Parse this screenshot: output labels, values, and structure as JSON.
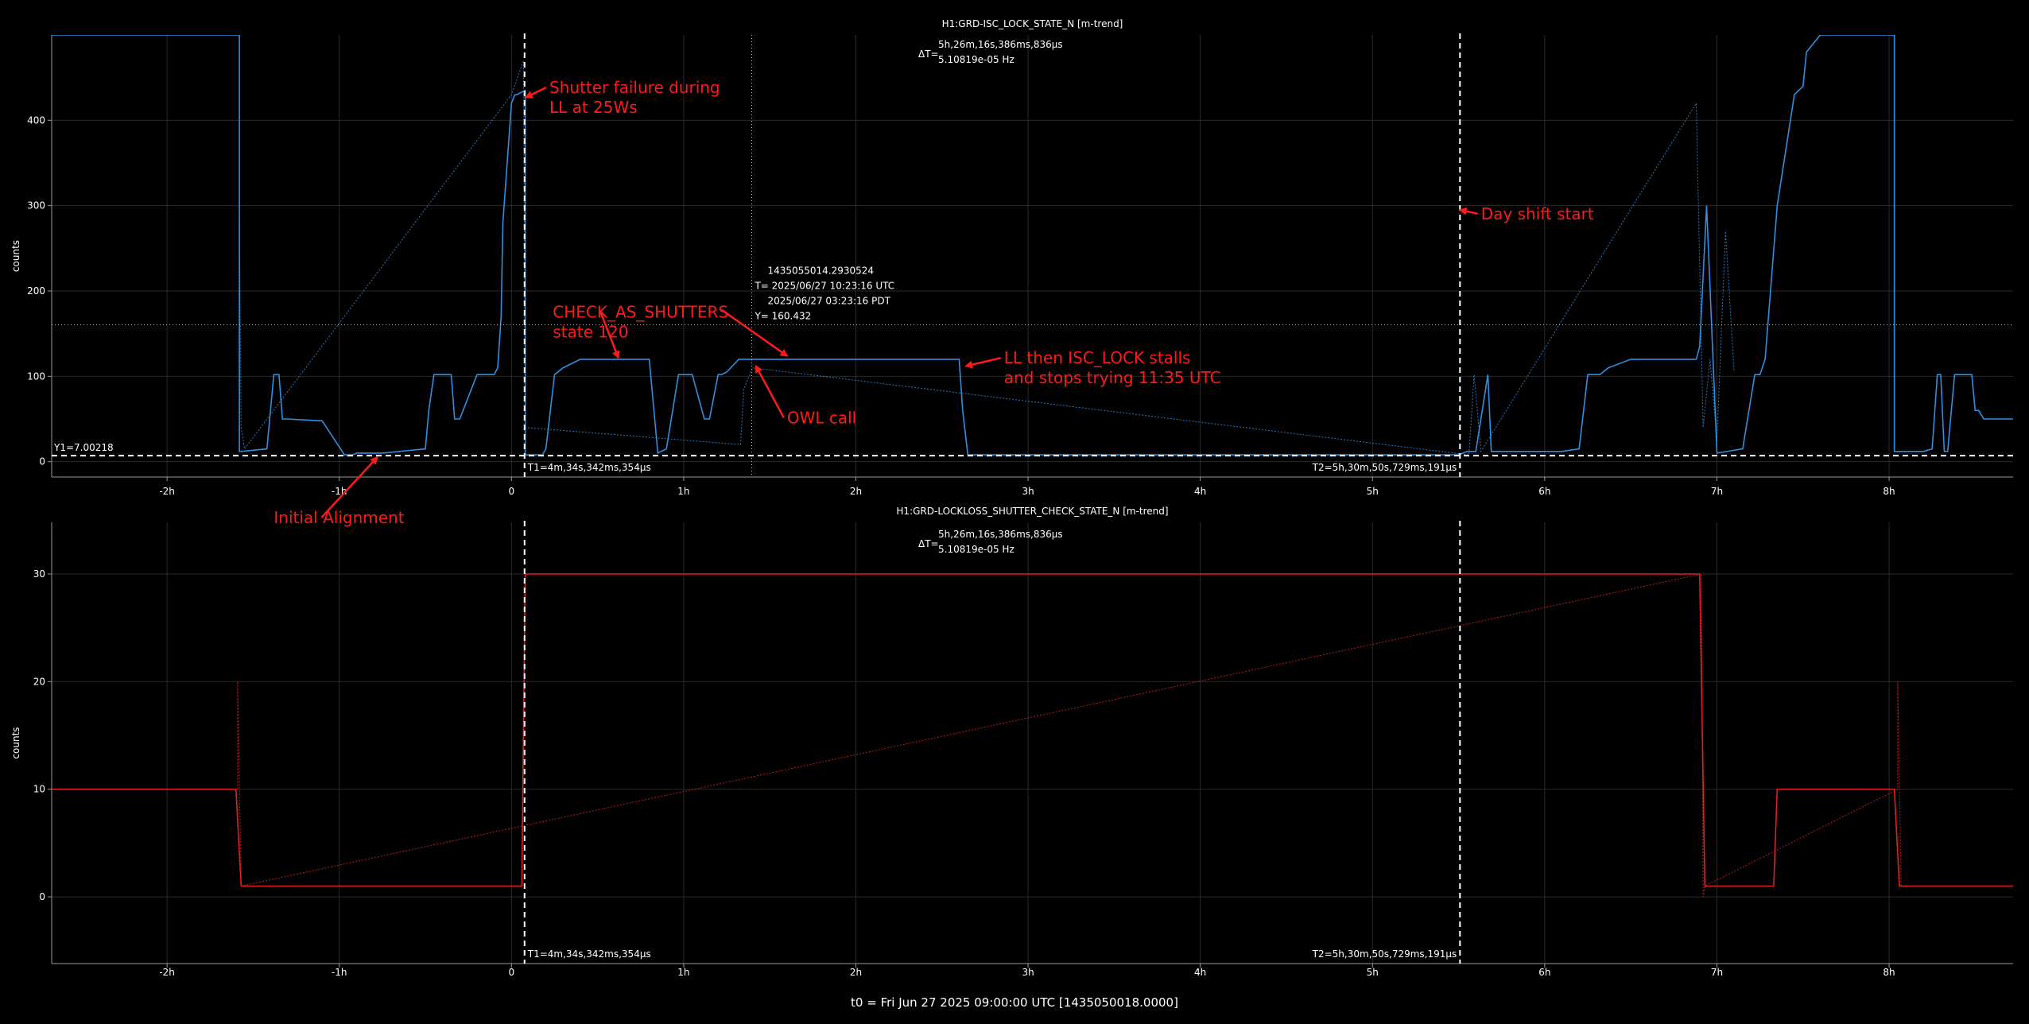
{
  "colors": {
    "background": "#000000",
    "axis": "#9a9a9a",
    "grid": "#2a2a2a",
    "text": "#ffffff",
    "trace_top": "#2f8fe0",
    "trace_bottom": "#e02020",
    "annotation": "#ff1a1a",
    "cursor": "#ffffff"
  },
  "footer": "t0 = Fri Jun 27 2025 09:00:00 UTC [1435050018.0000]",
  "chart_data": [
    {
      "type": "line",
      "title": "H1:GRD-ISC_LOCK_STATE_N [m-trend]",
      "ylabel": "counts",
      "xlim": [
        -2.67,
        8.72
      ],
      "ylim": [
        -18,
        500
      ],
      "xticks": [
        -2,
        -1,
        0,
        1,
        2,
        3,
        4,
        5,
        6,
        7,
        8
      ],
      "xtick_labels": [
        "-2h",
        "-1h",
        "0",
        "1h",
        "2h",
        "3h",
        "4h",
        "5h",
        "6h",
        "7h",
        "8h"
      ],
      "yticks": [
        0,
        100,
        200,
        300,
        400
      ],
      "ytick_labels": [
        "0",
        "100",
        "200",
        "300",
        "400"
      ],
      "grid": true,
      "series": [
        {
          "x": [
            -2.67,
            -1.58,
            -1.58,
            -1.57,
            -1.42,
            -1.38,
            -1.35,
            -1.33,
            -1.3,
            -1.12,
            -1.1,
            -0.97,
            -0.92,
            -0.9,
            -0.75,
            -0.5,
            -0.48,
            -0.45,
            -0.35,
            -0.33,
            -0.3,
            -0.2,
            -0.15,
            -0.1,
            -0.08,
            -0.06,
            -0.05,
            0.0,
            0.02,
            0.03,
            0.08,
            0.08,
            0.18,
            0.2,
            0.25,
            0.3,
            0.4,
            0.5,
            0.6,
            0.7,
            0.8,
            0.85,
            0.9,
            0.97,
            1.0,
            1.05,
            1.12,
            1.15,
            1.2,
            1.22,
            1.25,
            1.32,
            1.38,
            1.42,
            1.5,
            1.55,
            1.6,
            2.6,
            2.62,
            2.65,
            5.45,
            5.5,
            5.55,
            5.6,
            5.67,
            5.69,
            6.1,
            6.2,
            6.25,
            6.28,
            6.32,
            6.37,
            6.5,
            6.6,
            6.8,
            6.88,
            6.9,
            6.94,
            7.0,
            7.15,
            7.22,
            7.25,
            7.28,
            7.35,
            7.45,
            7.5,
            7.52,
            7.6,
            7.7,
            7.75,
            8.03,
            8.03,
            8.2,
            8.25,
            8.28,
            8.3,
            8.32,
            8.34,
            8.38,
            8.48,
            8.5,
            8.52,
            8.55,
            8.72
          ],
          "y": [
            500,
            500,
            12,
            12,
            15,
            102,
            102,
            50,
            50,
            48,
            48,
            8,
            8,
            10,
            10,
            15,
            60,
            102,
            102,
            50,
            50,
            102,
            102,
            102,
            110,
            170,
            280,
            420,
            430,
            430,
            435,
            8,
            8,
            15,
            102,
            110,
            120,
            120,
            120,
            120,
            120,
            10,
            15,
            102,
            102,
            102,
            50,
            50,
            102,
            102,
            105,
            120,
            120,
            120,
            120,
            120,
            120,
            120,
            60,
            8,
            8,
            8,
            12,
            12,
            102,
            12,
            12,
            15,
            102,
            102,
            102,
            110,
            120,
            120,
            120,
            120,
            135,
            300,
            10,
            15,
            102,
            102,
            120,
            300,
            430,
            440,
            480,
            500,
            500,
            500,
            500,
            12,
            12,
            15,
            102,
            102,
            12,
            12,
            102,
            102,
            60,
            60,
            50,
            50
          ],
          "style": "solid"
        },
        {
          "x": [
            -1.58,
            -1.57,
            -1.55,
            -0.0,
            0.07,
            0.08,
            1.33,
            1.35,
            1.4,
            5.56,
            5.59,
            5.63,
            6.88,
            6.92,
            6.96,
            7.0,
            7.05,
            7.1
          ],
          "y": [
            290,
            40,
            15,
            430,
            470,
            40,
            20,
            85,
            110,
            8,
            102,
            12,
            420,
            40,
            120,
            25,
            270,
            105
          ],
          "style": "dotted"
        }
      ],
      "cursors": {
        "t1": 0.076,
        "t2": 5.508,
        "y1": 7.00218,
        "t1_label": "T1=4m,34s,342ms,354µs",
        "t2_label": "T2=5h,30m,50s,729ms,191µs",
        "y1_label": "Y1=7.00218",
        "delta_label": "ΔT=",
        "delta_line1": "5h,26m,16s,386ms,836µs",
        "delta_line2": "5.10819e-05 Hz"
      },
      "crosshair": {
        "x": 1.395,
        "y": 160.432,
        "label_gps": "1435055014.2930524",
        "label_utc": "T= 2025/06/27 10:23:16 UTC",
        "label_pdt": "2025/06/27 03:23:16 PDT",
        "label_y": "Y= 160.432"
      },
      "annotations": [
        {
          "lines": [
            "Shutter failure during",
            "LL at 25Ws"
          ],
          "text_x": 0.22,
          "text_y": 432,
          "arrow_to_x": 0.085,
          "arrow_to_y": 427
        },
        {
          "lines": [
            "Day shift start"
          ],
          "text_x": 5.63,
          "text_y": 284,
          "arrow_to_x": 5.51,
          "arrow_to_y": 295
        },
        {
          "lines": [
            "CHECK_AS_SHUTTERS",
            "state 120"
          ],
          "text_x": 0.24,
          "text_y": 169,
          "arrow_to_x": 0.62,
          "arrow_to_y": 122
        },
        {
          "lines": [],
          "text_x": 1.22,
          "text_y": 178,
          "arrow_to_x": 1.6,
          "arrow_to_y": 124
        },
        {
          "lines": [
            "OWL call"
          ],
          "text_x": 1.6,
          "text_y": 45,
          "arrow_to_x": 1.42,
          "arrow_to_y": 112
        },
        {
          "lines": [
            "LL then ISC_LOCK stalls",
            "and stops trying 11:35 UTC"
          ],
          "text_x": 2.86,
          "text_y": 115,
          "arrow_to_x": 2.64,
          "arrow_to_y": 112
        },
        {
          "lines": [
            "Initial Alignment"
          ],
          "text_x": -1.38,
          "text_y": -72,
          "arrow_to_x": -0.78,
          "arrow_to_y": 5
        }
      ]
    },
    {
      "type": "line",
      "title": "H1:GRD-LOCKLOSS_SHUTTER_CHECK_STATE_N [m-trend]",
      "ylabel": "counts",
      "xlim": [
        -2.67,
        8.72
      ],
      "ylim": [
        -6.2,
        34.8
      ],
      "xticks": [
        -2,
        -1,
        0,
        1,
        2,
        3,
        4,
        5,
        6,
        7,
        8
      ],
      "xtick_labels": [
        "-2h",
        "-1h",
        "0",
        "1h",
        "2h",
        "3h",
        "4h",
        "5h",
        "6h",
        "7h",
        "8h"
      ],
      "yticks": [
        0,
        10,
        20,
        30
      ],
      "ytick_labels": [
        "0",
        "10",
        "20",
        "30"
      ],
      "grid": true,
      "series": [
        {
          "x": [
            -2.67,
            -1.6,
            -1.57,
            0.06,
            0.08,
            6.9,
            6.93,
            7.33,
            7.35,
            8.03,
            8.06,
            8.72
          ],
          "y": [
            10,
            10,
            1,
            1,
            30,
            30,
            1,
            1,
            10,
            10,
            1,
            1
          ],
          "style": "solid"
        },
        {
          "x": [
            -1.59,
            -1.59,
            -1.57,
            6.91,
            6.92,
            6.93,
            8.05,
            8.05,
            8.07
          ],
          "y": [
            10,
            20,
            1,
            30,
            0,
            1,
            10,
            20,
            1
          ],
          "style": "dotted"
        }
      ],
      "cursors": {
        "t1": 0.076,
        "t2": 5.508,
        "t1_label": "T1=4m,34s,342ms,354µs",
        "t2_label": "T2=5h,30m,50s,729ms,191µs",
        "delta_label": "ΔT=",
        "delta_line1": "5h,26m,16s,386ms,836µs",
        "delta_line2": "5.10819e-05 Hz"
      },
      "annotations": []
    }
  ]
}
